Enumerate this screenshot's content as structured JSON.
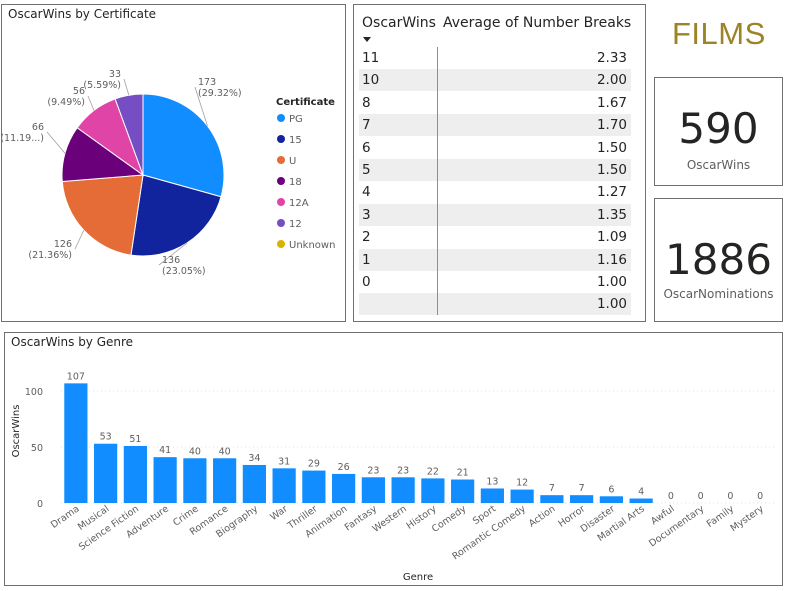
{
  "header": {
    "films_title": "FILMS"
  },
  "cards": {
    "wins": {
      "value": "590",
      "label": "OscarWins"
    },
    "nominations": {
      "value": "1886",
      "label": "OscarNominations"
    }
  },
  "table": {
    "col1": "OscarWins",
    "col2": "Average of Number Breaks",
    "rows": [
      {
        "wins": "11",
        "avg": "2.33"
      },
      {
        "wins": "10",
        "avg": "2.00"
      },
      {
        "wins": "8",
        "avg": "1.67"
      },
      {
        "wins": "7",
        "avg": "1.70"
      },
      {
        "wins": "6",
        "avg": "1.50"
      },
      {
        "wins": "5",
        "avg": "1.50"
      },
      {
        "wins": "4",
        "avg": "1.27"
      },
      {
        "wins": "3",
        "avg": "1.35"
      },
      {
        "wins": "2",
        "avg": "1.09"
      },
      {
        "wins": "1",
        "avg": "1.16"
      },
      {
        "wins": "0",
        "avg": "1.00"
      },
      {
        "wins": "",
        "avg": "1.00"
      }
    ]
  },
  "chart_data": [
    {
      "type": "pie",
      "title": "OscarWins by Certificate",
      "legend_title": "Certificate",
      "legend_position": "right",
      "slices": [
        {
          "label": "PG",
          "value": 173,
          "percent_label": "(29.32%)",
          "color": "#118DFF"
        },
        {
          "label": "15",
          "value": 136,
          "percent_label": "(23.05%)",
          "color": "#12239E"
        },
        {
          "label": "U",
          "value": 126,
          "percent_label": "(21.36%)",
          "color": "#E66C37"
        },
        {
          "label": "18",
          "value": 66,
          "percent_label": "(11.19...)",
          "color": "#6B007B"
        },
        {
          "label": "12A",
          "value": 56,
          "percent_label": "(9.49%)",
          "color": "#E044A7"
        },
        {
          "label": "12",
          "value": 33,
          "percent_label": "(5.59%)",
          "color": "#744EC2"
        },
        {
          "label": "Unknown",
          "value": 0,
          "percent_label": "",
          "color": "#D9B300"
        }
      ]
    },
    {
      "type": "bar",
      "title": "OscarWins by Genre",
      "xlabel": "Genre",
      "ylabel": "OscarWins",
      "ylim": [
        0,
        110
      ],
      "yticks": [
        "0",
        "50",
        "100"
      ],
      "grid": true,
      "color": "#118DFF",
      "categories": [
        "Drama",
        "Musical",
        "Science Fiction",
        "Adventure",
        "Crime",
        "Romance",
        "Biography",
        "War",
        "Thriller",
        "Animation",
        "Fantasy",
        "Western",
        "History",
        "Comedy",
        "Sport",
        "Romantic Comedy",
        "Action",
        "Horror",
        "Disaster",
        "Martial Arts",
        "Awful",
        "Documentary",
        "Family",
        "Mystery"
      ],
      "values": [
        107,
        53,
        51,
        41,
        40,
        40,
        34,
        31,
        29,
        26,
        23,
        23,
        22,
        21,
        13,
        12,
        7,
        7,
        6,
        4,
        0,
        0,
        0,
        0
      ]
    }
  ]
}
